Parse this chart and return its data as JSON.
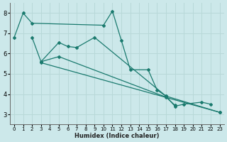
{
  "line_color": "#1a7a6e",
  "bg_color": "#cce8ea",
  "grid_color": "#b8d8d8",
  "xlabel": "Humidex (Indice chaleur)",
  "xlim": [
    -0.5,
    23.5
  ],
  "ylim": [
    2.5,
    8.5
  ],
  "yticks": [
    3,
    4,
    5,
    6,
    7,
    8
  ],
  "xticks": [
    0,
    1,
    2,
    3,
    4,
    5,
    6,
    7,
    8,
    9,
    10,
    11,
    12,
    13,
    14,
    15,
    16,
    17,
    18,
    19,
    20,
    21,
    22,
    23
  ],
  "series1_x": [
    0,
    1,
    2,
    10,
    11,
    12,
    13,
    15,
    16,
    17,
    23
  ],
  "series1_y": [
    6.8,
    8.0,
    7.5,
    7.4,
    8.1,
    6.65,
    5.2,
    5.2,
    4.2,
    3.9,
    3.1
  ],
  "series2_x": [
    2,
    3,
    5,
    6,
    7,
    9,
    17,
    18,
    19,
    21,
    22
  ],
  "series2_y": [
    6.8,
    5.6,
    6.55,
    6.35,
    6.3,
    6.8,
    3.9,
    3.4,
    3.5,
    3.6,
    3.5
  ],
  "series3_x": [
    3,
    5,
    17,
    18
  ],
  "series3_y": [
    5.6,
    5.85,
    3.85,
    3.45
  ],
  "series4_x": [
    3,
    23
  ],
  "series4_y": [
    5.55,
    3.1
  ]
}
